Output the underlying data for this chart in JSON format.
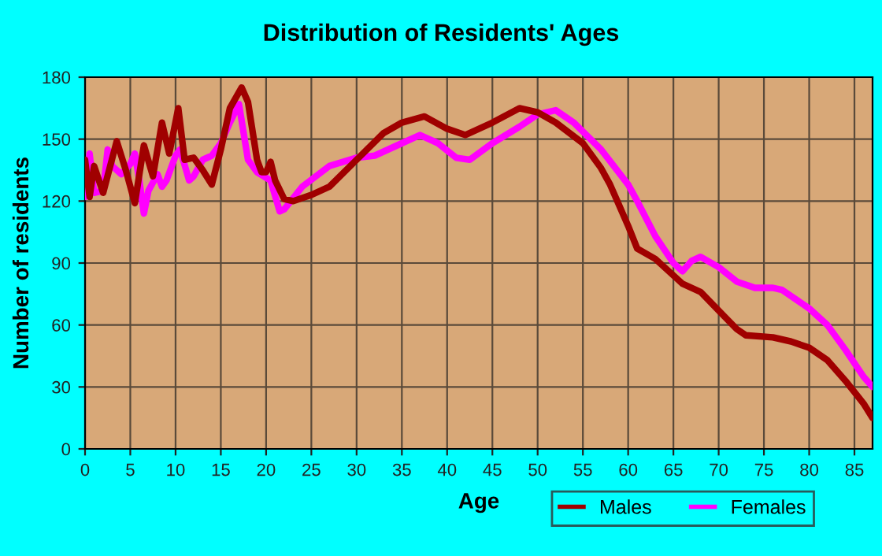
{
  "chart_data": {
    "type": "line",
    "title": "Distribution of Residents' Ages",
    "xlabel": "Age",
    "ylabel": "Number of residents",
    "xlim": [
      0,
      87
    ],
    "xticks": [
      0,
      5,
      10,
      15,
      20,
      25,
      30,
      35,
      40,
      45,
      50,
      55,
      60,
      65,
      70,
      75,
      80,
      85
    ],
    "ylim": [
      0,
      180
    ],
    "yticks": [
      0,
      30,
      60,
      90,
      120,
      150,
      180
    ],
    "grid": true,
    "legend": "bottom right",
    "marker": "none",
    "line_style": "solid",
    "series": [
      {
        "name": "Males",
        "color": "#a00000",
        "x": [
          0,
          0.5,
          1,
          2,
          3.5,
          4.5,
          5.5,
          6.5,
          7.5,
          8.5,
          9.3,
          10.3,
          11,
          12,
          13,
          14,
          15,
          16,
          17.3,
          18,
          19,
          19.5,
          20,
          20.5,
          21,
          22,
          23,
          25,
          27,
          30,
          33,
          35,
          37.5,
          40,
          42,
          45,
          48,
          50,
          52,
          55,
          57,
          58,
          60,
          61,
          63,
          65,
          66,
          68,
          70,
          72,
          73,
          76,
          78,
          80,
          82,
          84,
          86,
          87
        ],
        "values": [
          140,
          122,
          137,
          124,
          149,
          135,
          119,
          147,
          132,
          158,
          143,
          165,
          140,
          141,
          135,
          128,
          145,
          165,
          175,
          168,
          140,
          134,
          134,
          139,
          130,
          121,
          120,
          123,
          127,
          140,
          153,
          158,
          161,
          155,
          152,
          158,
          165,
          163,
          158,
          148,
          136,
          128,
          108,
          97,
          92,
          84,
          80,
          76,
          67,
          58,
          55,
          54,
          52,
          49,
          43,
          33,
          22,
          15
        ]
      },
      {
        "name": "Females",
        "color": "#ff00ff",
        "x": [
          0,
          0.5,
          1,
          2,
          2.5,
          3,
          4,
          5,
          5.5,
          6,
          6.5,
          7,
          8,
          8.5,
          9,
          10,
          10.5,
          11.5,
          12,
          13,
          14,
          15,
          16,
          17,
          18,
          19,
          20.5,
          21.5,
          22,
          24,
          27,
          30,
          32,
          35,
          37,
          39,
          41,
          42.5,
          45,
          48,
          50,
          52,
          54,
          57,
          60,
          61,
          63,
          65,
          66,
          67,
          68,
          70,
          72,
          74,
          76,
          77,
          80,
          82,
          84,
          86,
          87
        ],
        "values": [
          122,
          143,
          124,
          125,
          145,
          137,
          133,
          138,
          143,
          130,
          114,
          125,
          133,
          127,
          130,
          142,
          145,
          130,
          132,
          140,
          142,
          148,
          158,
          167,
          140,
          134,
          130,
          115,
          116,
          127,
          137,
          141,
          142,
          148,
          152,
          148,
          141,
          140,
          148,
          156,
          162,
          164,
          158,
          145,
          128,
          120,
          103,
          90,
          86,
          91,
          93,
          88,
          81,
          78,
          78,
          77,
          68,
          60,
          48,
          35,
          30
        ]
      }
    ]
  }
}
